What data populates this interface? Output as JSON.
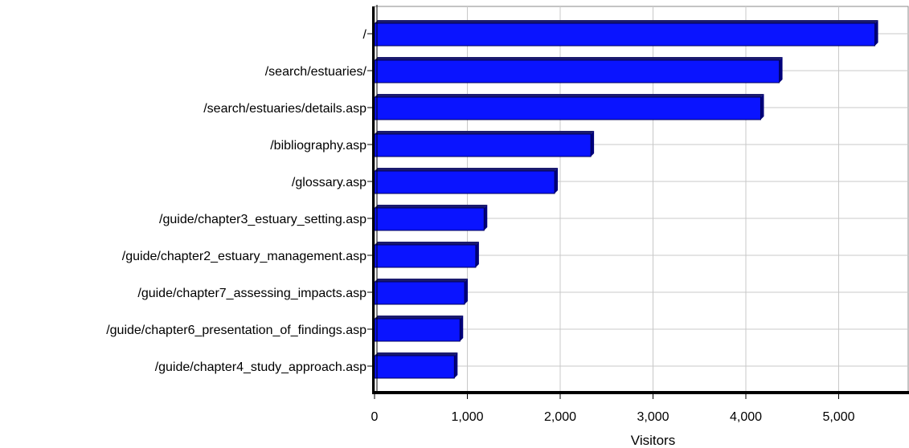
{
  "chart_data": {
    "type": "bar",
    "orientation": "horizontal",
    "categories": [
      "/",
      "/search/estuaries/",
      "/search/estuaries/details.asp",
      "/bibliography.asp",
      "/glossary.asp",
      "/guide/chapter3_estuary_setting.asp",
      "/guide/chapter2_estuary_management.asp",
      "/guide/chapter7_assessing_impacts.asp",
      "/guide/chapter6_presentation_of_findings.asp",
      "/guide/chapter4_study_approach.asp"
    ],
    "values": [
      5390,
      4360,
      4160,
      2330,
      1940,
      1180,
      1090,
      970,
      920,
      860
    ],
    "xlabel": "Visitors",
    "ylabel": "",
    "xlim": [
      0,
      5800
    ],
    "xticks": [
      0,
      1000,
      2000,
      3000,
      4000,
      5000
    ],
    "xtick_labels": [
      "0",
      "1,000",
      "2,000",
      "3,000",
      "4,000",
      "5,000"
    ],
    "grid": true,
    "legend": "none",
    "colors": {
      "bar_face": "#0a14ff",
      "bar_side": "#00007a",
      "bar_top": "#1a1a6e",
      "grid": "#c8c8c8",
      "axis": "#000000"
    }
  }
}
